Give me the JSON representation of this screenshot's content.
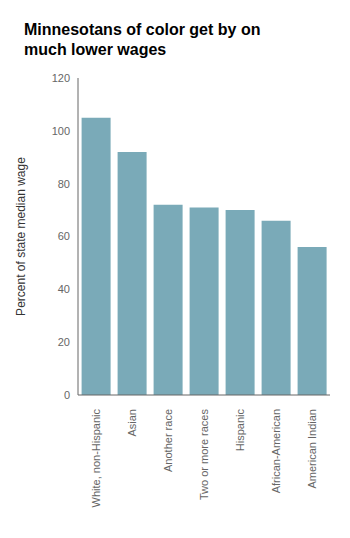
{
  "chart_data": {
    "type": "bar",
    "title": "Minnesotans of color get by on\nmuch lower wages",
    "categories": [
      "White, non-Hispanic",
      "Asian",
      "Another race",
      "Two or more races",
      "Hispanic",
      "African-American",
      "American Indian"
    ],
    "values": [
      105,
      92,
      72,
      71,
      70,
      66,
      56
    ],
    "color": "#7aaab8",
    "ylabel": "Percent of state median wage",
    "ylim": [
      0,
      120
    ],
    "yticks": [
      0,
      20,
      40,
      60,
      80,
      100,
      120
    ],
    "grid": false
  }
}
